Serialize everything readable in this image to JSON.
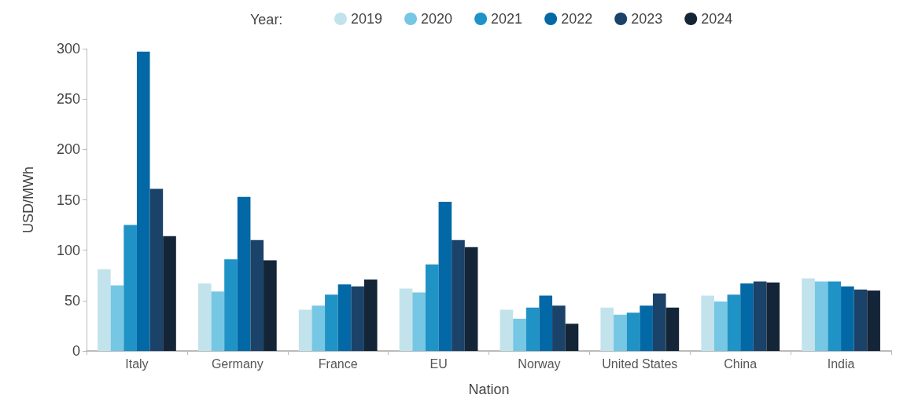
{
  "chart_data": {
    "type": "bar",
    "xlabel": "Nation",
    "ylabel": "USD/MWh",
    "legend_title": "Year:",
    "legend": "top",
    "grid": false,
    "categories": [
      "Italy",
      "Germany",
      "France",
      "EU",
      "Norway",
      "United States",
      "China",
      "India"
    ],
    "ylim": [
      0,
      300
    ],
    "yticks": [
      0,
      50,
      100,
      150,
      200,
      250,
      300
    ],
    "series": [
      {
        "name": "2019",
        "color": "#c2e3ec",
        "values": [
          81,
          67,
          41,
          62,
          41,
          43,
          55,
          72
        ]
      },
      {
        "name": "2020",
        "color": "#76c7e4",
        "values": [
          65,
          59,
          45,
          58,
          32,
          36,
          49,
          69
        ]
      },
      {
        "name": "2021",
        "color": "#1f93c6",
        "values": [
          125,
          91,
          56,
          86,
          43,
          38,
          56,
          69
        ]
      },
      {
        "name": "2022",
        "color": "#0368a6",
        "values": [
          297,
          153,
          66,
          148,
          55,
          45,
          67,
          64
        ]
      },
      {
        "name": "2023",
        "color": "#1b4268",
        "values": [
          161,
          110,
          64,
          110,
          45,
          57,
          69,
          61
        ]
      },
      {
        "name": "2024",
        "color": "#132537",
        "values": [
          114,
          90,
          71,
          103,
          27,
          43,
          68,
          60
        ]
      }
    ]
  }
}
